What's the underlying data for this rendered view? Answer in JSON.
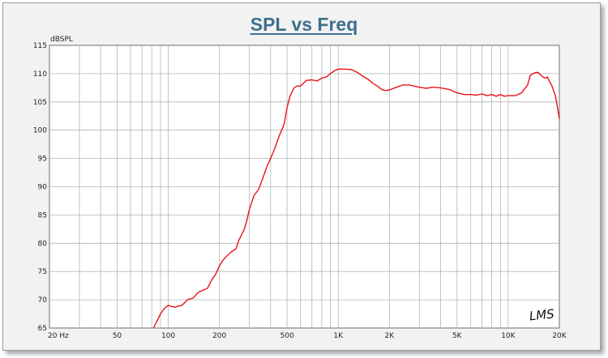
{
  "chart_data": {
    "type": "line",
    "title": "SPL vs Freq",
    "ylabel": "dBSPL",
    "xlabel": "",
    "xscale": "log",
    "xlim": [
      20,
      20000
    ],
    "ylim": [
      65,
      115
    ],
    "grid": true,
    "x_ticks": [
      20,
      50,
      100,
      200,
      500,
      1000,
      2000,
      5000,
      10000,
      20000
    ],
    "x_tick_labels": [
      "20  Hz",
      "50",
      "100",
      "200",
      "500",
      "1K",
      "2K",
      "5K",
      "10K",
      "20K"
    ],
    "y_ticks": [
      65,
      70,
      75,
      80,
      85,
      90,
      95,
      100,
      105,
      110,
      115
    ],
    "y_tick_labels": [
      "65",
      "70",
      "75",
      "80",
      "85",
      "90",
      "95",
      "100",
      "105",
      "110",
      "115"
    ],
    "line_color": "#e8121a",
    "series": [
      {
        "x": [
          82,
          85,
          90,
          95,
          100,
          105,
          110,
          115,
          120,
          130,
          140,
          150,
          160,
          170,
          180,
          190,
          200,
          210,
          220,
          230,
          240,
          250,
          260,
          270,
          280,
          290,
          300,
          320,
          340,
          360,
          380,
          400,
          420,
          450,
          480,
          500,
          520,
          550,
          570,
          600,
          650,
          700,
          750,
          800,
          850,
          900,
          950,
          1000,
          1100,
          1200,
          1300,
          1400,
          1500,
          1600,
          1700,
          1800,
          1900,
          2000,
          2200,
          2400,
          2600,
          2800,
          3000,
          3300,
          3600,
          4000,
          4500,
          5000,
          5500,
          6000,
          6500,
          7000,
          7500,
          8000,
          8500,
          9000,
          9500,
          10000,
          11000,
          12000,
          13000,
          13500,
          14000,
          14500,
          15000,
          15500,
          16000,
          16500,
          17000,
          17500,
          18000,
          19000,
          20000
        ],
        "y": [
          65,
          66,
          67.5,
          68.5,
          69,
          68.8,
          68.7,
          68.9,
          69,
          70,
          70.3,
          71.3,
          71.7,
          72,
          73.5,
          74.5,
          76,
          77,
          77.7,
          78.2,
          78.7,
          79,
          80.5,
          81.5,
          82.5,
          84,
          86,
          88.5,
          89.5,
          91.5,
          93.5,
          95,
          96.5,
          99,
          101,
          104,
          106,
          107.5,
          107.8,
          107.8,
          108.8,
          108.9,
          108.7,
          109.2,
          109.4,
          110,
          110.5,
          110.8,
          110.8,
          110.7,
          110.2,
          109.5,
          109,
          108.3,
          107.8,
          107.2,
          107,
          107.1,
          107.6,
          108,
          108,
          107.8,
          107.6,
          107.4,
          107.6,
          107.5,
          107.2,
          106.6,
          106.3,
          106.3,
          106.2,
          106.4,
          106.1,
          106.3,
          106,
          106.3,
          106,
          106.1,
          106.1,
          106.6,
          108,
          109.7,
          110,
          110.2,
          110.2,
          109.8,
          109.4,
          109.2,
          109.4,
          108.6,
          108,
          106,
          102
        ]
      }
    ]
  },
  "watermark": "LMS"
}
